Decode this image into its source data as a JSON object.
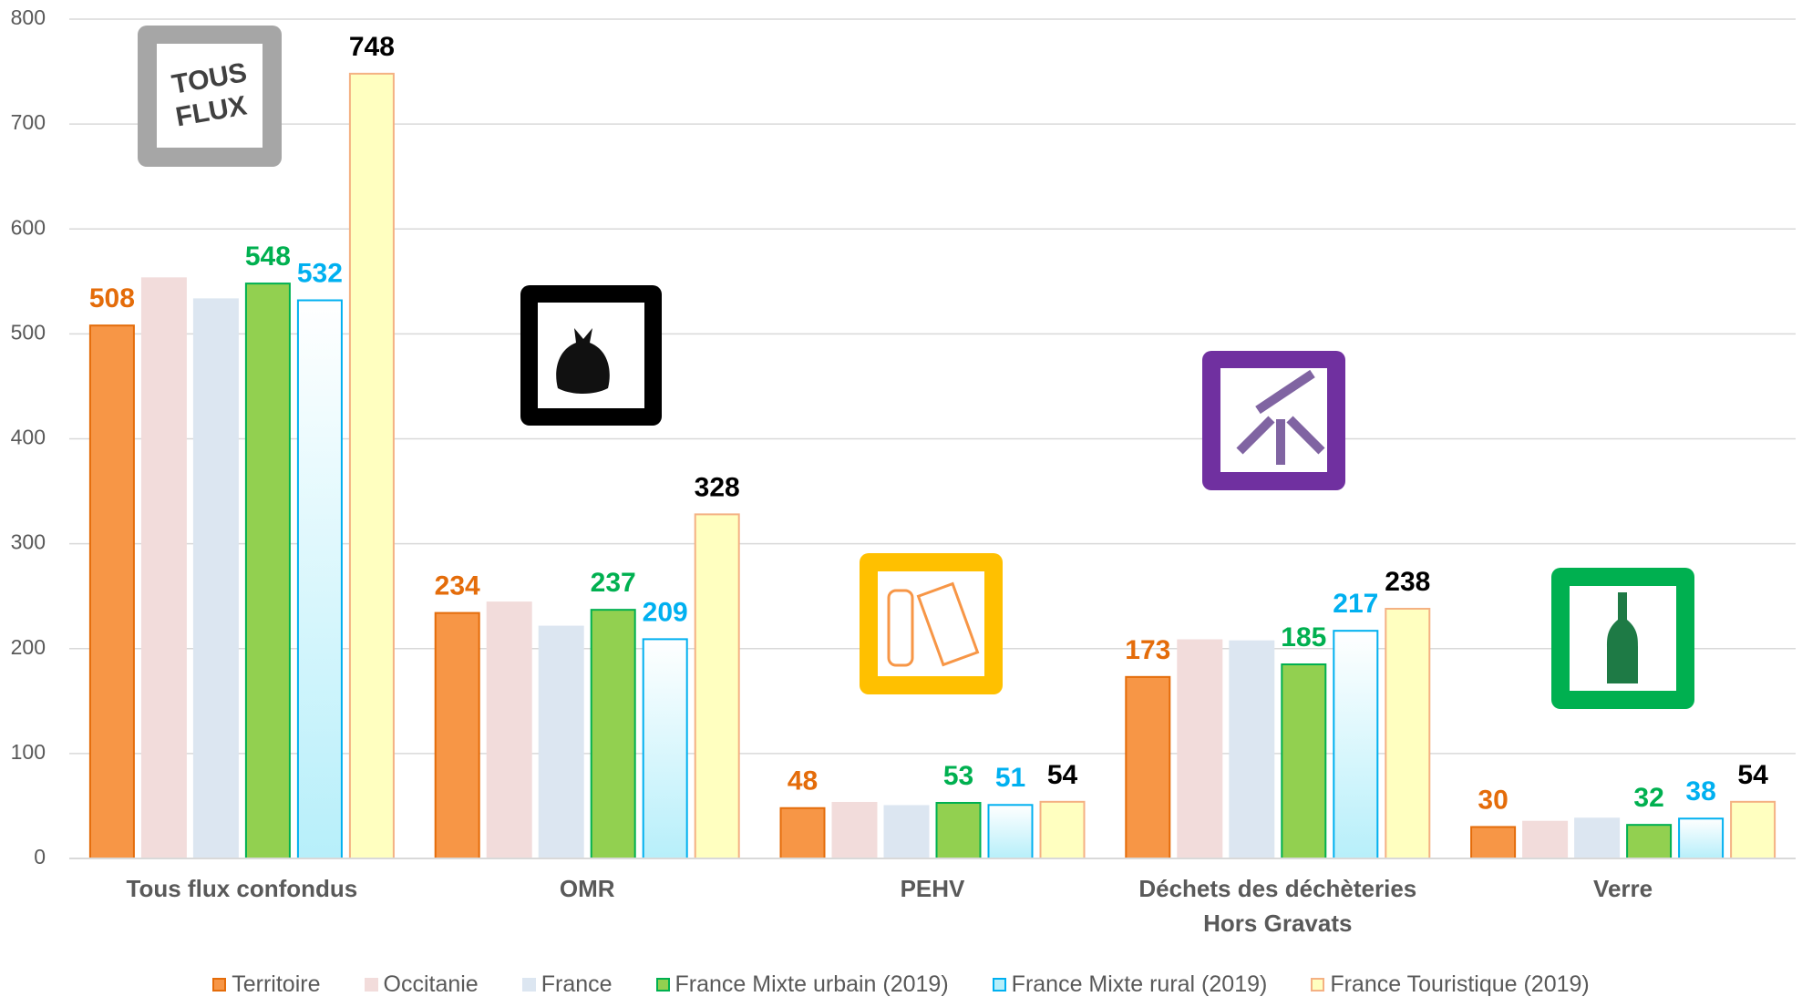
{
  "chart_data": {
    "type": "bar",
    "categories": [
      "Tous flux confondus",
      "OMR",
      "PEHV",
      "Déchets des déchèteries\nHors Gravats",
      "Verre"
    ],
    "series": [
      {
        "name": "Territoire",
        "color": "#f79646",
        "stroke": "#e46c0a",
        "label_color": "#e46c0a",
        "show_labels": true,
        "values": [
          508,
          234,
          48,
          173,
          30
        ]
      },
      {
        "name": "Occitanie",
        "color": "#f2dcdb",
        "stroke": "#f2dcdb",
        "label_color": "#000000",
        "show_labels": false,
        "values": [
          553,
          244,
          53,
          208,
          35
        ]
      },
      {
        "name": "France",
        "color": "#dce6f1",
        "stroke": "#dce6f1",
        "label_color": "#000000",
        "show_labels": false,
        "values": [
          533,
          221,
          50,
          207,
          38
        ]
      },
      {
        "name": "France Mixte urbain (2019)",
        "color": "#92d050",
        "stroke": "#00b050",
        "label_color": "#00b050",
        "show_labels": true,
        "values": [
          548,
          237,
          53,
          185,
          32
        ]
      },
      {
        "name": "France Mixte rural (2019)",
        "color": "#b7effa",
        "stroke": "#00b0f0",
        "label_color": "#00b0f0",
        "show_labels": true,
        "values": [
          532,
          209,
          51,
          217,
          38
        ]
      },
      {
        "name": "France Touristique (2019)",
        "color": "#ffffc0",
        "stroke": "#f4b183",
        "label_color": "#000000",
        "show_labels": true,
        "values": [
          748,
          328,
          54,
          238,
          54
        ]
      }
    ],
    "ylim": [
      0,
      800
    ],
    "yticks": [
      0,
      100,
      200,
      300,
      400,
      500,
      600,
      700,
      800
    ],
    "grid": true,
    "legend": "bottom",
    "icon_text": [
      "TOUS",
      "FLUX"
    ]
  }
}
